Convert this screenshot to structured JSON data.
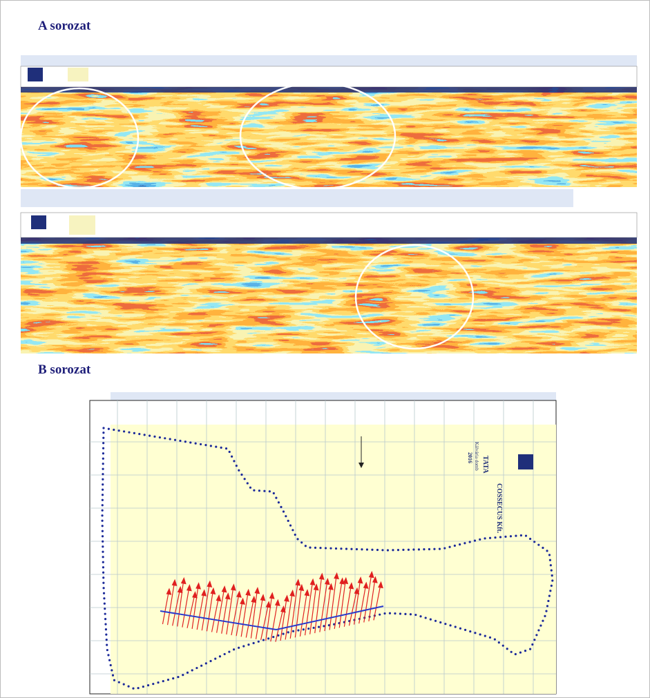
{
  "headings": [
    "A sorozat",
    "B sorozat"
  ],
  "map": {
    "company": "COSSECUS Kft.",
    "title": "TATA",
    "subtitle": "Kálvária domb",
    "year": "2016"
  }
}
